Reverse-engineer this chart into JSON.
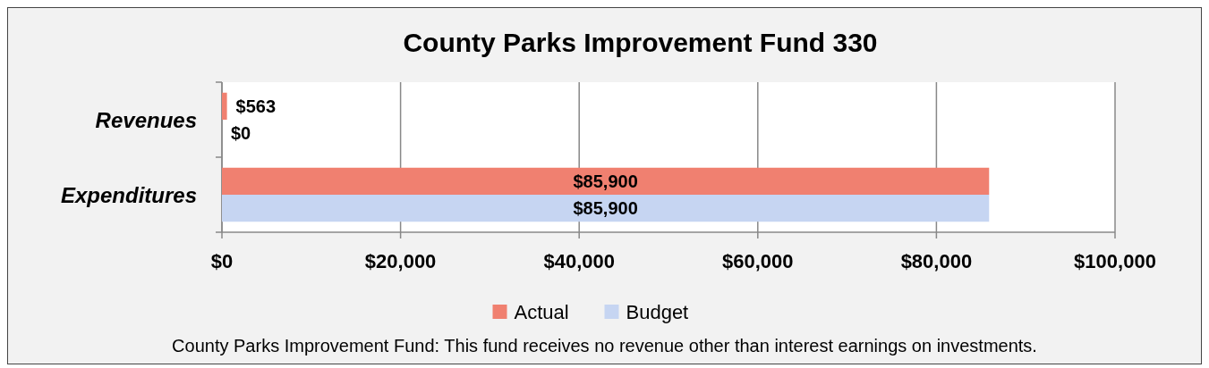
{
  "chart_data": {
    "type": "bar",
    "orientation": "horizontal",
    "title": "County Parks Improvement Fund 330",
    "categories": [
      "Revenues",
      "Expenditures"
    ],
    "series": [
      {
        "name": "Actual",
        "color": "#f08070",
        "values": [
          563,
          85900
        ],
        "value_labels": [
          "$563",
          "$85,900"
        ]
      },
      {
        "name": "Budget",
        "color": "#c6d5f2",
        "values": [
          0,
          85900
        ],
        "value_labels": [
          "$0",
          "$85,900"
        ]
      }
    ],
    "xlim": [
      0,
      100000
    ],
    "xticks": [
      {
        "value": 0,
        "label": "$0"
      },
      {
        "value": 20000,
        "label": "$20,000"
      },
      {
        "value": 40000,
        "label": "$40,000"
      },
      {
        "value": 60000,
        "label": "$60,000"
      },
      {
        "value": 80000,
        "label": "$80,000"
      },
      {
        "value": 100000,
        "label": "$100,000"
      }
    ],
    "grid": "x",
    "legend": "bottom",
    "annotations": [
      "County Parks Improvement Fund: This fund receives no revenue other than interest earnings on investments."
    ]
  }
}
